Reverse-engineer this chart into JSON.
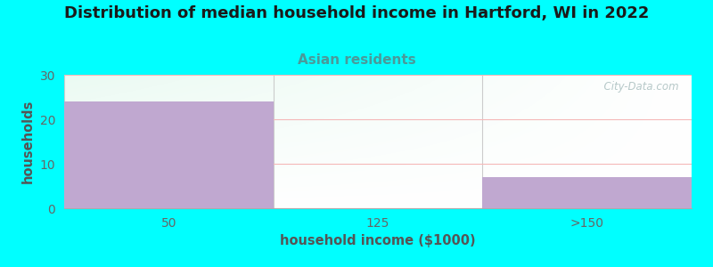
{
  "title": "Distribution of median household income in Hartford, WI in 2022",
  "subtitle": "Asian residents",
  "xlabel": "household income ($1000)",
  "ylabel": "households",
  "background_color": "#00FFFF",
  "bar_color": "#c0a8d0",
  "categories": [
    "50",
    "125",
    ">150"
  ],
  "values": [
    24,
    0,
    7
  ],
  "ylim": [
    0,
    30
  ],
  "yticks": [
    0,
    10,
    20,
    30
  ],
  "grid_color": "#f5b8b8",
  "title_fontsize": 13,
  "subtitle_fontsize": 11,
  "subtitle_color": "#4a9a9a",
  "axis_label_color": "#555555",
  "tick_color": "#666666",
  "watermark_text": "  City-Data.com",
  "watermark_color": "#aabfbf"
}
